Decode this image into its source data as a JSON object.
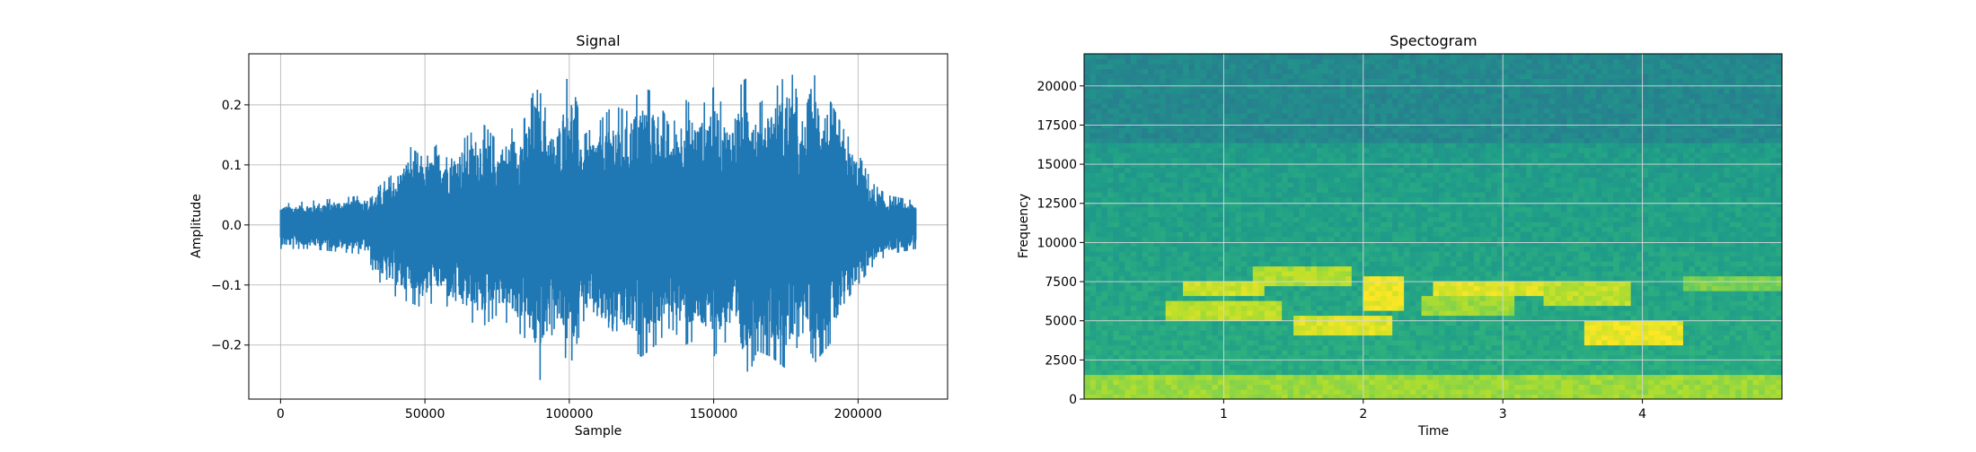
{
  "chart_data": [
    {
      "type": "line",
      "title": "Signal",
      "xlabel": "Sample",
      "ylabel": "Amplitude",
      "xlim": [
        -11000,
        231000
      ],
      "ylim": [
        -0.29,
        0.285
      ],
      "x_ticks": [
        0,
        50000,
        100000,
        150000,
        200000
      ],
      "y_ticks": [
        -0.2,
        -0.1,
        0.0,
        0.1,
        0.2
      ],
      "x_tick_labels": [
        "0",
        "50000",
        "100000",
        "150000",
        "200000"
      ],
      "y_tick_labels": [
        "−0.2",
        "−0.1",
        "0.0",
        "0.1",
        "0.2"
      ],
      "grid": true,
      "color": "#1f77b4",
      "series": [
        {
          "envelope_x": [
            0,
            10000,
            20000,
            30000,
            33000,
            40000,
            45000,
            50000,
            55000,
            60000,
            65000,
            70000,
            75000,
            80000,
            85000,
            88000,
            90000,
            92000,
            95000,
            100000,
            105000,
            110000,
            115000,
            120000,
            125000,
            130000,
            135000,
            140000,
            145000,
            150000,
            155000,
            160000,
            163000,
            165000,
            170000,
            175000,
            178000,
            180000,
            185000,
            190000,
            195000,
            200000,
            205000,
            210000,
            215000,
            220000
          ],
          "envelope_max": [
            0.035,
            0.04,
            0.045,
            0.05,
            0.06,
            0.09,
            0.13,
            0.11,
            0.14,
            0.13,
            0.15,
            0.17,
            0.14,
            0.16,
            0.18,
            0.23,
            0.22,
            0.19,
            0.16,
            0.26,
            0.15,
            0.17,
            0.2,
            0.19,
            0.23,
            0.22,
            0.16,
            0.21,
            0.19,
            0.23,
            0.18,
            0.24,
            0.25,
            0.2,
            0.22,
            0.25,
            0.25,
            0.16,
            0.25,
            0.21,
            0.16,
            0.12,
            0.07,
            0.05,
            0.045,
            0.04
          ],
          "envelope_min": [
            -0.04,
            -0.04,
            -0.045,
            -0.05,
            -0.09,
            -0.12,
            -0.13,
            -0.14,
            -0.12,
            -0.15,
            -0.16,
            -0.17,
            -0.15,
            -0.17,
            -0.19,
            -0.23,
            -0.26,
            -0.21,
            -0.17,
            -0.24,
            -0.16,
            -0.18,
            -0.21,
            -0.2,
            -0.22,
            -0.2,
            -0.17,
            -0.2,
            -0.19,
            -0.22,
            -0.19,
            -0.25,
            -0.24,
            -0.21,
            -0.22,
            -0.24,
            -0.23,
            -0.17,
            -0.23,
            -0.2,
            -0.17,
            -0.1,
            -0.07,
            -0.05,
            -0.045,
            -0.04
          ]
        }
      ]
    },
    {
      "type": "heatmap",
      "title": "Spectogram",
      "xlabel": "Time",
      "ylabel": "Frequency",
      "xlim": [
        0,
        5
      ],
      "ylim": [
        0,
        22050
      ],
      "x_ticks": [
        1,
        2,
        3,
        4
      ],
      "y_ticks": [
        0,
        2500,
        5000,
        7500,
        10000,
        12500,
        15000,
        17500,
        20000
      ],
      "x_tick_labels": [
        "1",
        "2",
        "3",
        "4"
      ],
      "y_tick_labels": [
        "0",
        "2500",
        "5000",
        "7500",
        "10000",
        "12500",
        "15000",
        "17500",
        "20000"
      ],
      "grid": true,
      "colormap": "viridis",
      "bands": [
        {
          "f0": 0,
          "f1": 1500,
          "t0": 0,
          "t1": 5,
          "level": 0.85
        },
        {
          "f0": 16500,
          "f1": 22050,
          "t0": 0,
          "t1": 5,
          "level": 0.45
        },
        {
          "f0": 5000,
          "f1": 6200,
          "t0": 0.6,
          "t1": 1.4,
          "level": 0.9
        },
        {
          "f0": 6500,
          "f1": 7700,
          "t0": 0.7,
          "t1": 1.3,
          "level": 0.92
        },
        {
          "f0": 7200,
          "f1": 8400,
          "t0": 1.2,
          "t1": 1.9,
          "level": 0.88
        },
        {
          "f0": 4200,
          "f1": 5400,
          "t0": 1.5,
          "t1": 2.2,
          "level": 0.95
        },
        {
          "f0": 5800,
          "f1": 8000,
          "t0": 2.0,
          "t1": 2.3,
          "level": 0.97
        },
        {
          "f0": 6500,
          "f1": 7500,
          "t0": 2.5,
          "t1": 3.3,
          "level": 0.95
        },
        {
          "f0": 5200,
          "f1": 6500,
          "t0": 2.4,
          "t1": 3.1,
          "level": 0.85
        },
        {
          "f0": 3500,
          "f1": 5000,
          "t0": 3.6,
          "t1": 4.3,
          "level": 0.97
        },
        {
          "f0": 6000,
          "f1": 7500,
          "t0": 3.3,
          "t1": 3.9,
          "level": 0.9
        },
        {
          "f0": 7000,
          "f1": 8000,
          "t0": 4.3,
          "t1": 5.0,
          "level": 0.8
        }
      ]
    }
  ]
}
